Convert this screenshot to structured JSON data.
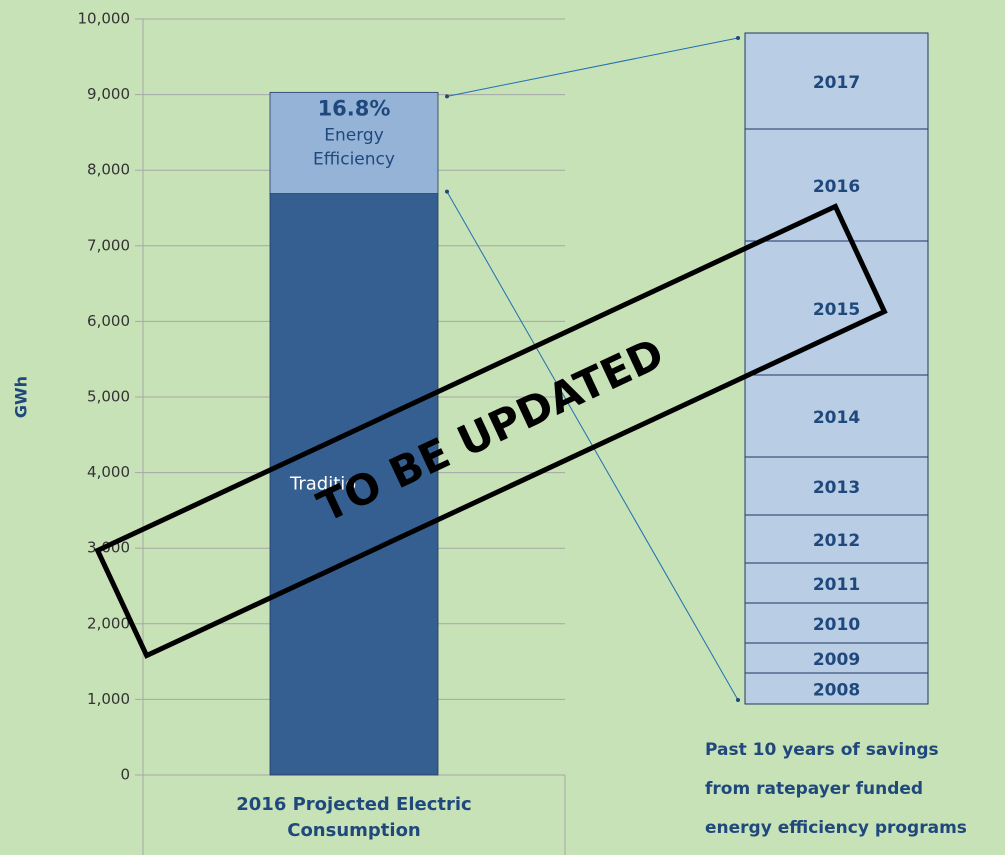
{
  "chart_data": {
    "type": "stacked-bar",
    "ylabel": "GWh",
    "categories": [
      "2016 Projected Electric Consumption"
    ],
    "category_label_lines": [
      "2016 Projected Electric",
      "Consumption"
    ],
    "series": [
      {
        "name": "Traditio",
        "color": "#365f91",
        "values": [
          7690
        ]
      },
      {
        "name_lines": [
          "Energy",
          "Efficiency"
        ],
        "color": "#95b3d7",
        "values": [
          1340
        ],
        "annotation": "16.8%"
      }
    ],
    "ylim": [
      0,
      10000
    ],
    "yticks": [
      0,
      {
        "value": 1000,
        "label": "1,000"
      },
      {
        "value": 2000,
        "label": "2,000"
      },
      {
        "value": 3000,
        "label": "3,000"
      },
      {
        "value": 4000,
        "label": "4,000"
      },
      {
        "value": 5000,
        "label": "5,000"
      },
      {
        "value": 6000,
        "label": "6,000"
      },
      {
        "value": 7000,
        "label": "7,000"
      },
      {
        "value": 8000,
        "label": "8,000"
      },
      {
        "value": 9000,
        "label": "9,000"
      },
      {
        "value": 10000,
        "label": "10,000"
      }
    ],
    "grid": true,
    "breakdown": {
      "categories": [
        "2008",
        "2009",
        "2010",
        "2011",
        "2012",
        "2013",
        "2014",
        "2015",
        "2016",
        "2017"
      ],
      "values": [
        62,
        60,
        80,
        80,
        96,
        116,
        164,
        268,
        224,
        192
      ],
      "color": "#b9cde5",
      "caption_lines": [
        "Past 10 years of savings",
        "from ratepayer funded",
        "energy efficiency programs"
      ]
    },
    "stamp": "TO BE UPDATED"
  }
}
